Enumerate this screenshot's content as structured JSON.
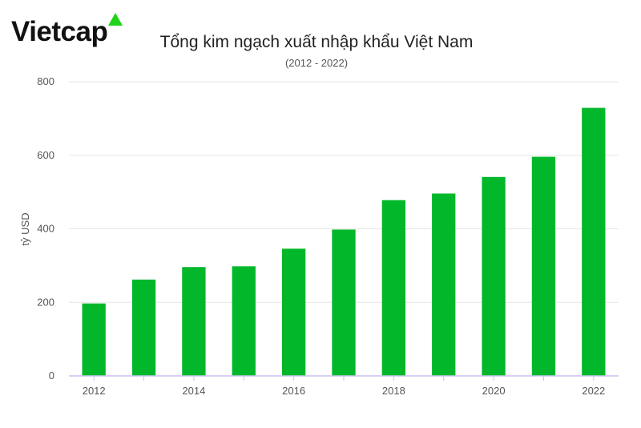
{
  "brand": {
    "name": "Vietcap",
    "accent_color": "#1fd51a"
  },
  "chart_data": {
    "type": "bar",
    "title": "Tổng kim ngạch xuất nhập khẩu Việt Nam",
    "subtitle": "(2012 - 2022)",
    "xlabel": "",
    "ylabel": "tỷ USD",
    "categories": [
      "2012",
      "2013",
      "2014",
      "2015",
      "2016",
      "2017",
      "2018",
      "2019",
      "2020",
      "2021",
      "2022"
    ],
    "x_tick_labels": [
      "2012",
      "2014",
      "2016",
      "2018",
      "2020",
      "2022"
    ],
    "values": [
      197,
      262,
      296,
      298,
      346,
      398,
      478,
      496,
      541,
      596,
      729
    ],
    "ylim": [
      0,
      800
    ],
    "y_ticks": [
      0,
      200,
      400,
      600,
      800
    ],
    "grid": true,
    "bar_color": "#02b82a",
    "axis_color": "#c9c2f0"
  }
}
